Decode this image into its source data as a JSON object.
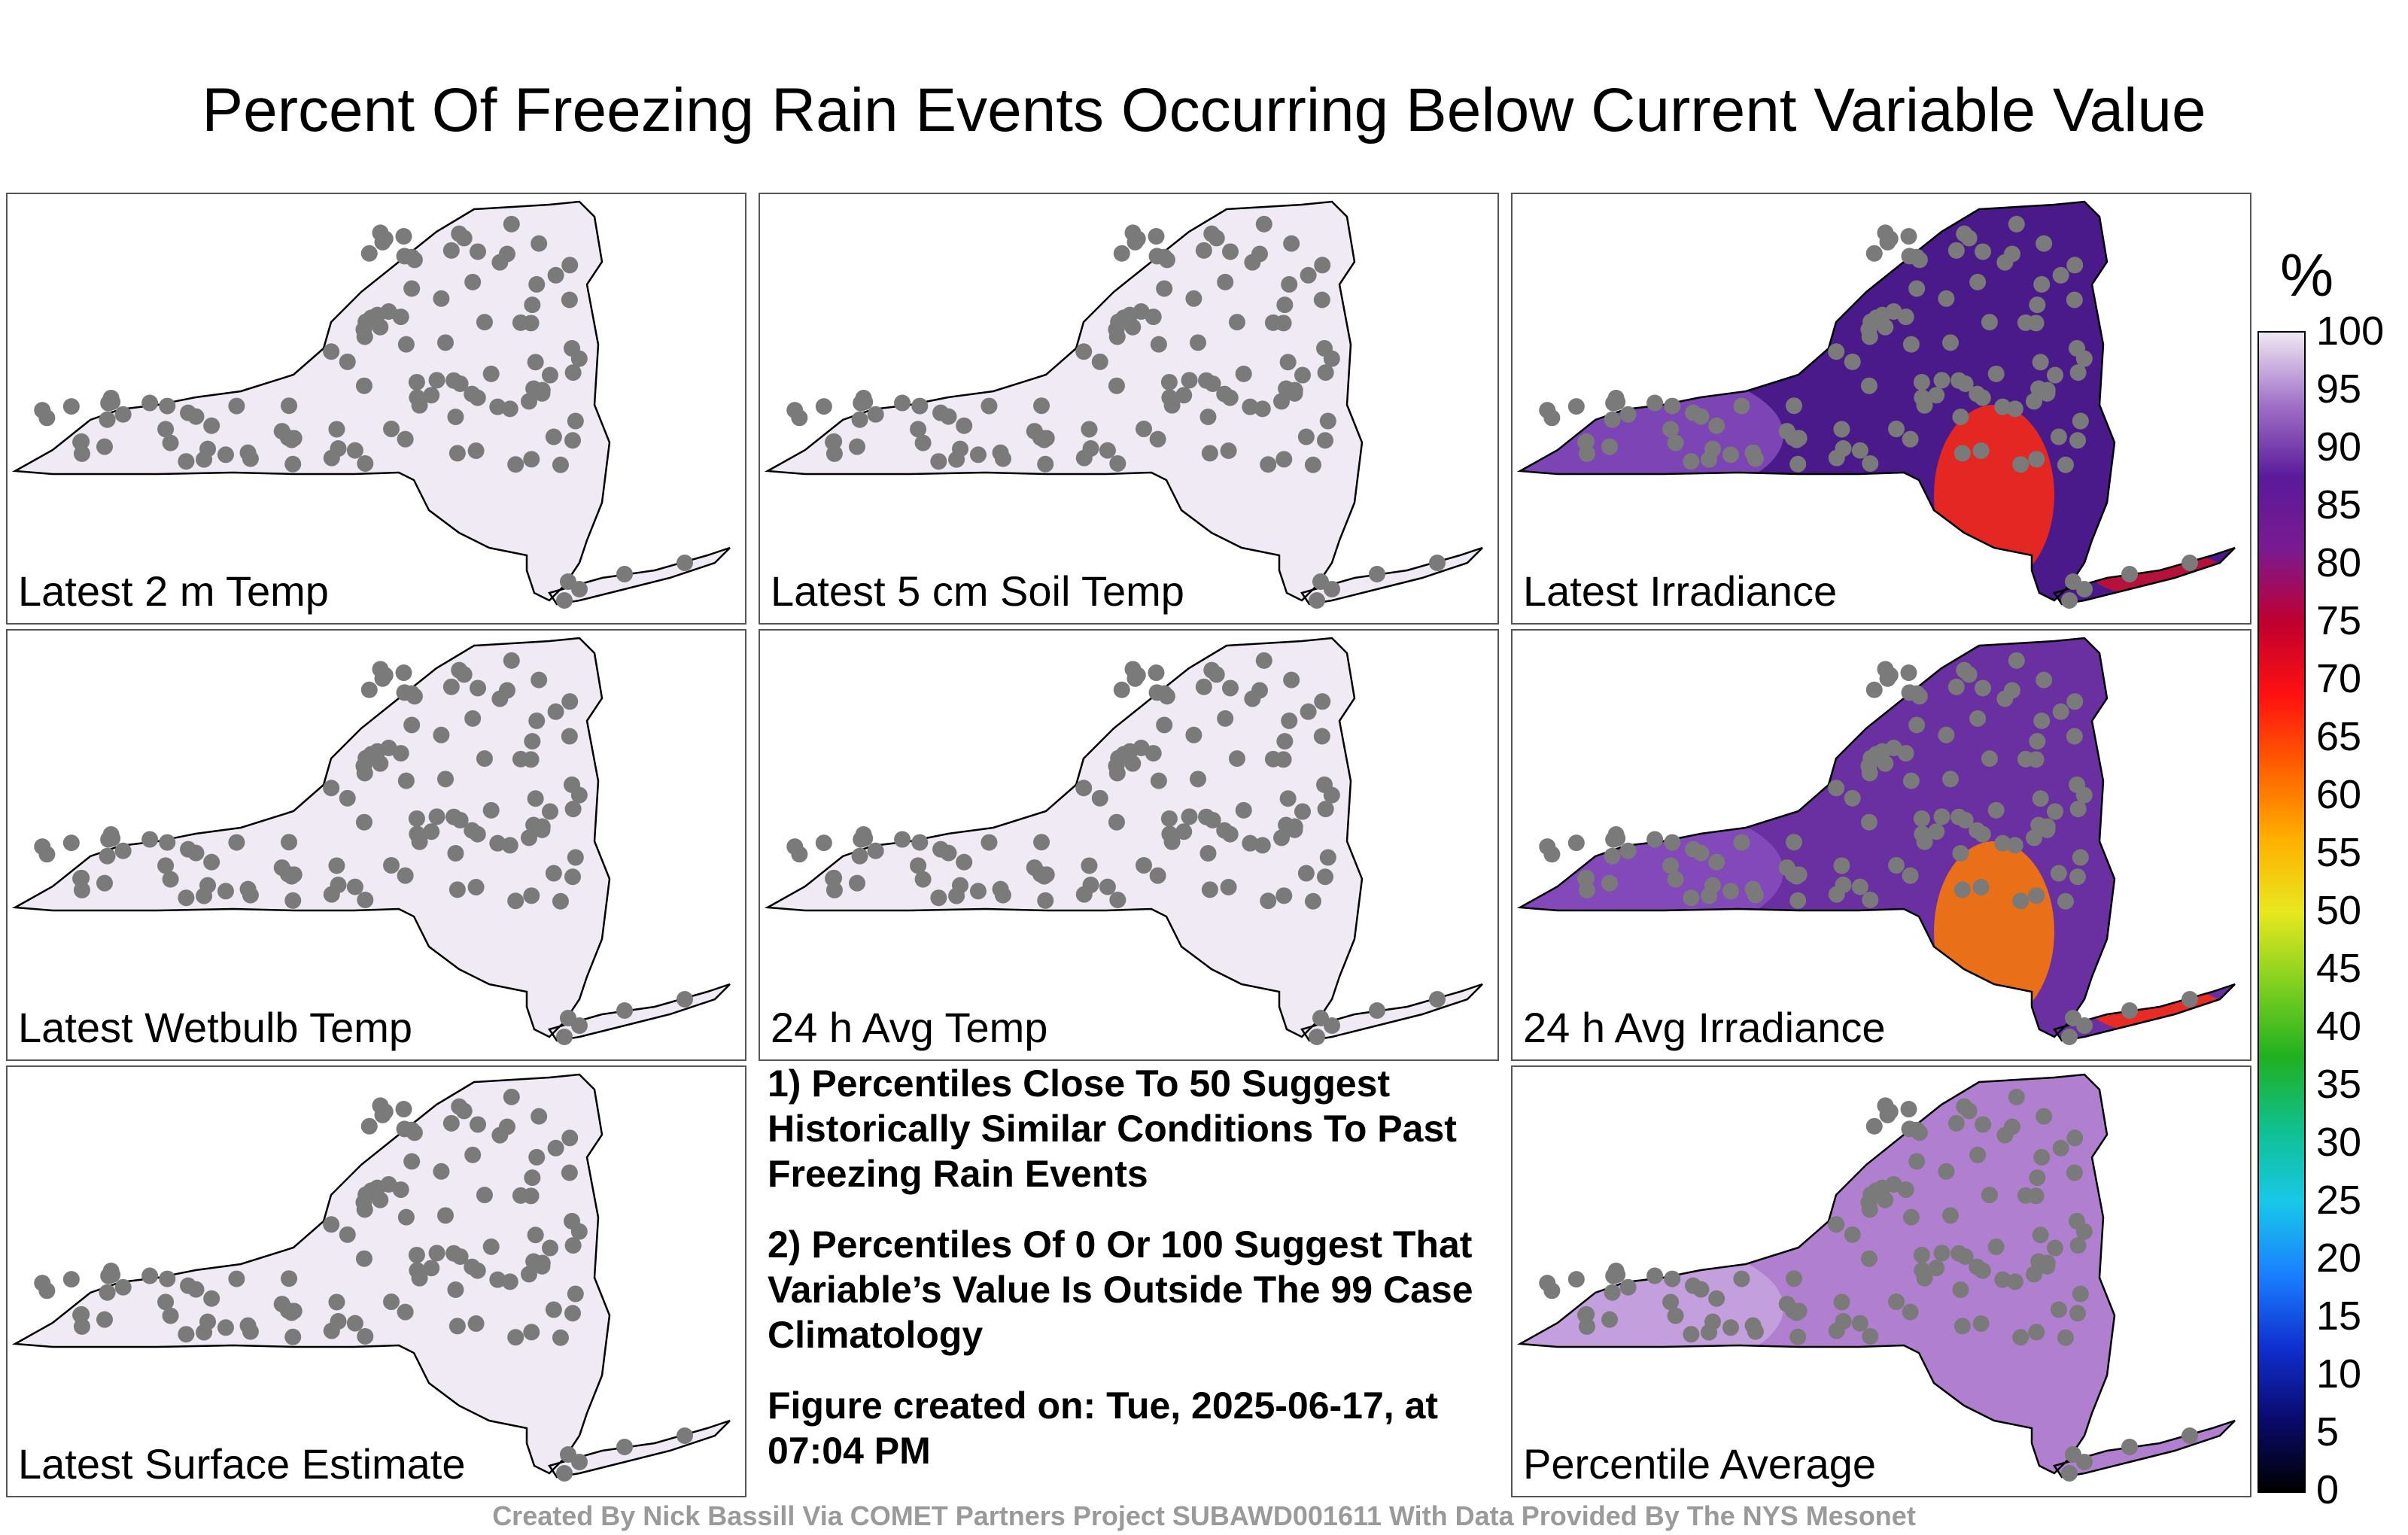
{
  "title": "Percent Of Freezing Rain Events Occurring Below Current Variable Value",
  "panels": [
    {
      "label": "Latest 2 m Temp",
      "fill": "#efeaf4",
      "dots": "100",
      "hot": []
    },
    {
      "label": "Latest 5 cm Soil Temp",
      "fill": "#efeaf4",
      "dots": "100",
      "hot": []
    },
    {
      "label": "Latest Irradiance",
      "fill": "#4a1a8a",
      "dots": "mixed",
      "hot": [
        "#ff2a10",
        "#c8102e"
      ]
    },
    {
      "label": "Latest Wetbulb Temp",
      "fill": "#efeaf4",
      "dots": "100",
      "hot": []
    },
    {
      "label": "24 h Avg Temp",
      "fill": "#efeaf4",
      "dots": "100",
      "hot": []
    },
    {
      "label": "24 h Avg Irradiance",
      "fill": "#6a2fa0",
      "dots": "mixed",
      "hot": [
        "#ff7a00",
        "#ff2a10"
      ]
    },
    {
      "label": "Latest Surface Estimate",
      "fill": "#efeaf4",
      "dots": "100",
      "hot": []
    },
    {
      "label": "Percentile Average",
      "fill": "#b07fd0",
      "dots": "mixed",
      "hot": []
    }
  ],
  "notes": [
    "1) Percentiles Close To 50 Suggest Historically Similar Conditions To Past Freezing Rain Events",
    "2) Percentiles Of 0 Or 100 Suggest That Variable’s Value Is Outside The 99 Case Climatology",
    "Figure created on: Tue, 2025-06-17, at 07:04 PM"
  ],
  "colorbar": {
    "unit": "%",
    "ticks": [
      "100",
      "95",
      "90",
      "85",
      "80",
      "75",
      "70",
      "65",
      "60",
      "55",
      "50",
      "45",
      "40",
      "35",
      "30",
      "25",
      "20",
      "15",
      "10",
      "5",
      "0"
    ]
  },
  "credit": "Created By Nick Bassill Via COMET Partners Project SUBAWD001611 With Data Provided By The NYS Mesonet"
}
